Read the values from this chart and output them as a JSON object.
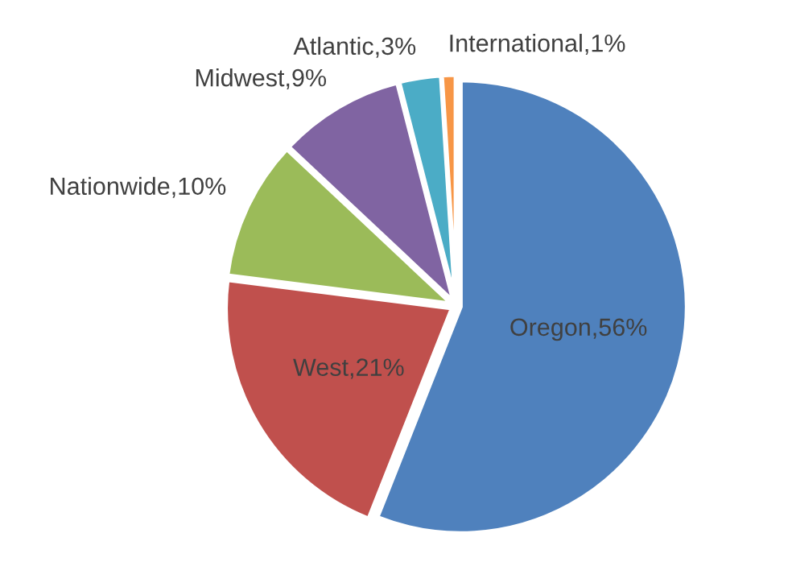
{
  "chart_data": {
    "type": "pie",
    "categories": [
      "Oregon",
      "West",
      "Nationwide",
      "Midwest",
      "Atlantic",
      "International"
    ],
    "values": [
      56,
      21,
      10,
      9,
      3,
      1
    ],
    "colors": [
      "#4f81bd",
      "#c0504d",
      "#9bbb59",
      "#8064a2",
      "#4bacc6",
      "#f79646"
    ],
    "value_labels": [
      "56%",
      "21%",
      "10%",
      "9%",
      "3%",
      "1%"
    ]
  }
}
